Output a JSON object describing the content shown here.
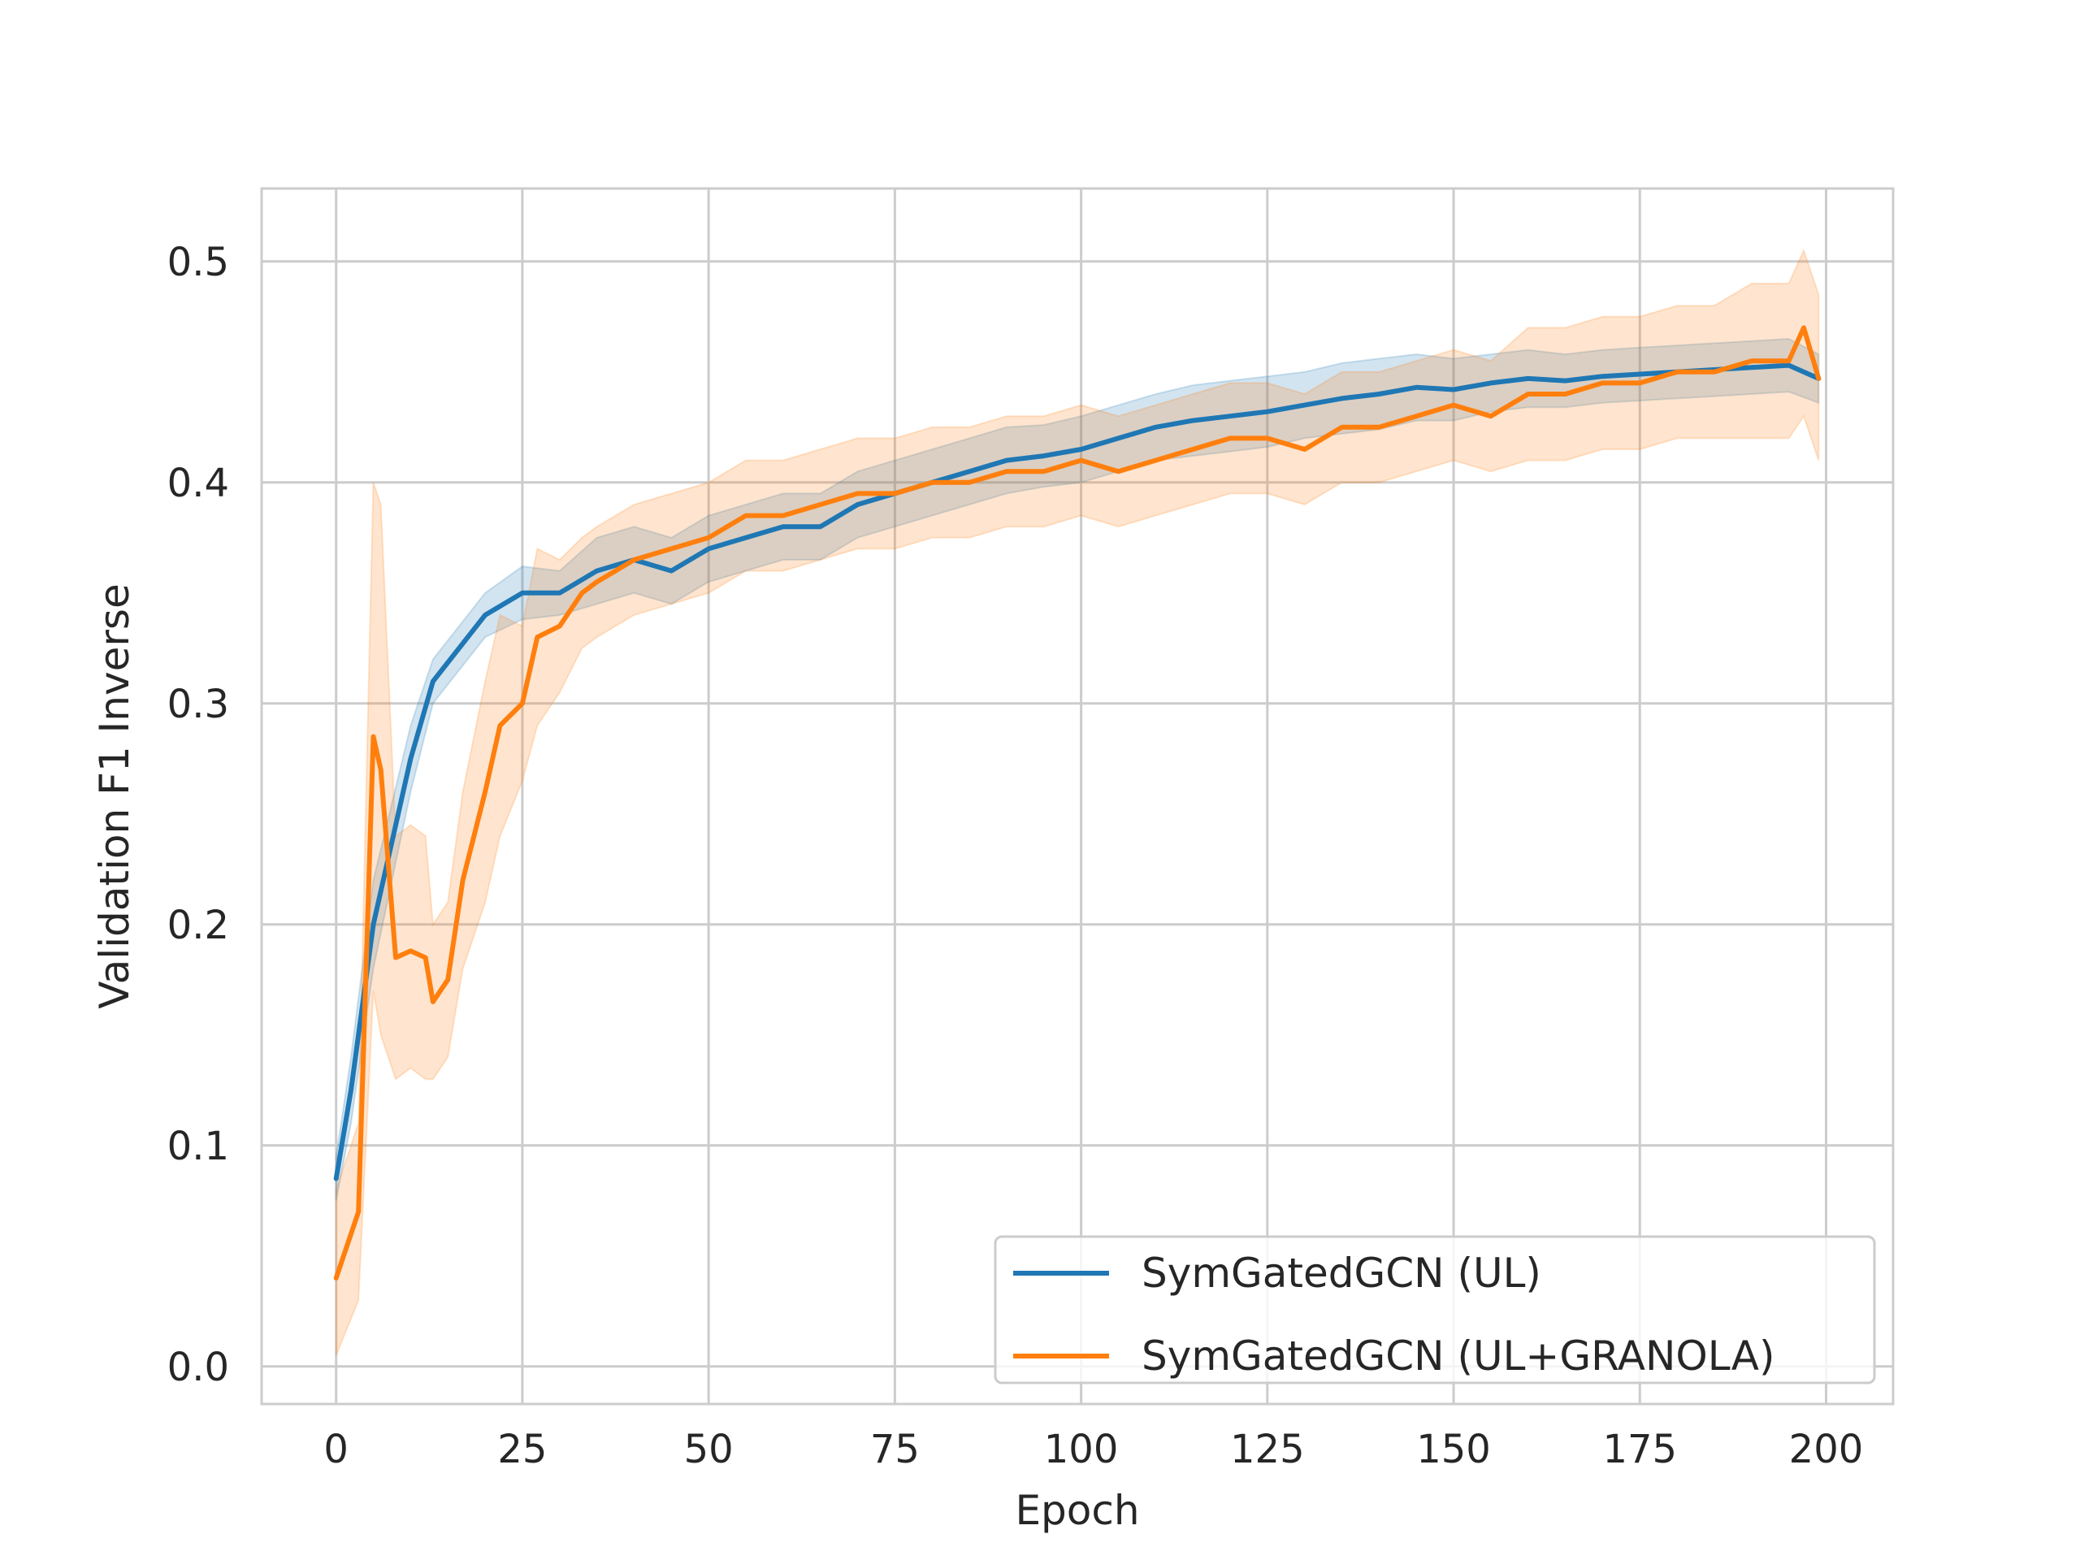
{
  "chart_data": {
    "type": "line",
    "title": "",
    "xlabel": "Epoch",
    "ylabel": "Validation F1 Inverse",
    "xlim": [
      -10,
      209
    ],
    "ylim": [
      -0.017,
      0.533
    ],
    "xticks": [
      0,
      25,
      50,
      75,
      100,
      125,
      150,
      175,
      200
    ],
    "yticks": [
      0.0,
      0.1,
      0.2,
      0.3,
      0.4,
      0.5
    ],
    "xtick_labels": [
      "0",
      "25",
      "50",
      "75",
      "100",
      "125",
      "150",
      "175",
      "200"
    ],
    "ytick_labels": [
      "0.0",
      "0.1",
      "0.2",
      "0.3",
      "0.4",
      "0.5"
    ],
    "grid": true,
    "legend_position": "lower-right",
    "series": [
      {
        "name": "SymGatedGCN (UL)",
        "color": "#1f77b4",
        "band_opacity": 0.2,
        "x": [
          0,
          2,
          5,
          10,
          13,
          20,
          25,
          30,
          35,
          40,
          45,
          50,
          55,
          60,
          65,
          70,
          75,
          80,
          85,
          90,
          95,
          100,
          105,
          110,
          115,
          120,
          125,
          130,
          135,
          140,
          145,
          150,
          155,
          160,
          165,
          170,
          175,
          180,
          185,
          190,
          195,
          199
        ],
        "values": [
          0.085,
          0.125,
          0.2,
          0.275,
          0.31,
          0.34,
          0.35,
          0.35,
          0.36,
          0.365,
          0.36,
          0.37,
          0.375,
          0.38,
          0.38,
          0.39,
          0.395,
          0.4,
          0.405,
          0.41,
          0.412,
          0.415,
          0.42,
          0.425,
          0.428,
          0.43,
          0.432,
          0.435,
          0.438,
          0.44,
          0.443,
          0.442,
          0.445,
          0.447,
          0.446,
          0.448,
          0.449,
          0.45,
          0.451,
          0.452,
          0.453,
          0.447
        ],
        "lower": [
          0.075,
          0.11,
          0.18,
          0.26,
          0.3,
          0.33,
          0.338,
          0.34,
          0.345,
          0.35,
          0.345,
          0.355,
          0.36,
          0.365,
          0.365,
          0.375,
          0.38,
          0.385,
          0.39,
          0.395,
          0.398,
          0.4,
          0.405,
          0.41,
          0.412,
          0.414,
          0.416,
          0.42,
          0.422,
          0.424,
          0.428,
          0.428,
          0.432,
          0.434,
          0.434,
          0.436,
          0.437,
          0.438,
          0.439,
          0.44,
          0.441,
          0.436
        ],
        "upper": [
          0.095,
          0.14,
          0.22,
          0.29,
          0.32,
          0.35,
          0.362,
          0.36,
          0.375,
          0.38,
          0.375,
          0.385,
          0.39,
          0.395,
          0.395,
          0.405,
          0.41,
          0.415,
          0.42,
          0.425,
          0.426,
          0.43,
          0.435,
          0.44,
          0.444,
          0.446,
          0.448,
          0.45,
          0.454,
          0.456,
          0.458,
          0.456,
          0.458,
          0.46,
          0.458,
          0.46,
          0.461,
          0.462,
          0.463,
          0.464,
          0.465,
          0.458
        ]
      },
      {
        "name": "SymGatedGCN (UL+GRANOLA)",
        "color": "#ff7f0e",
        "band_opacity": 0.2,
        "x": [
          0,
          3,
          5,
          6,
          8,
          10,
          12,
          13,
          15,
          17,
          20,
          22,
          25,
          27,
          30,
          33,
          35,
          40,
          45,
          50,
          55,
          60,
          65,
          70,
          75,
          80,
          85,
          90,
          95,
          100,
          105,
          110,
          115,
          120,
          125,
          130,
          135,
          140,
          145,
          150,
          155,
          160,
          165,
          170,
          175,
          180,
          185,
          190,
          195,
          197,
          199
        ],
        "values": [
          0.04,
          0.07,
          0.285,
          0.27,
          0.185,
          0.188,
          0.185,
          0.165,
          0.175,
          0.22,
          0.26,
          0.29,
          0.3,
          0.33,
          0.335,
          0.35,
          0.355,
          0.365,
          0.37,
          0.375,
          0.385,
          0.385,
          0.39,
          0.395,
          0.395,
          0.4,
          0.4,
          0.405,
          0.405,
          0.41,
          0.405,
          0.41,
          0.415,
          0.42,
          0.42,
          0.415,
          0.425,
          0.425,
          0.43,
          0.435,
          0.43,
          0.44,
          0.44,
          0.445,
          0.445,
          0.45,
          0.45,
          0.455,
          0.455,
          0.47,
          0.447
        ],
        "lower": [
          0.005,
          0.03,
          0.17,
          0.15,
          0.13,
          0.135,
          0.13,
          0.13,
          0.14,
          0.18,
          0.21,
          0.24,
          0.265,
          0.29,
          0.305,
          0.325,
          0.33,
          0.34,
          0.345,
          0.35,
          0.36,
          0.36,
          0.365,
          0.37,
          0.37,
          0.375,
          0.375,
          0.38,
          0.38,
          0.385,
          0.38,
          0.385,
          0.39,
          0.395,
          0.395,
          0.39,
          0.4,
          0.4,
          0.405,
          0.41,
          0.405,
          0.41,
          0.41,
          0.415,
          0.415,
          0.42,
          0.42,
          0.42,
          0.42,
          0.43,
          0.41
        ],
        "upper": [
          0.08,
          0.11,
          0.4,
          0.39,
          0.24,
          0.245,
          0.24,
          0.2,
          0.21,
          0.26,
          0.31,
          0.34,
          0.335,
          0.37,
          0.365,
          0.375,
          0.38,
          0.39,
          0.395,
          0.4,
          0.41,
          0.41,
          0.415,
          0.42,
          0.42,
          0.425,
          0.425,
          0.43,
          0.43,
          0.435,
          0.43,
          0.435,
          0.44,
          0.445,
          0.445,
          0.44,
          0.45,
          0.45,
          0.455,
          0.46,
          0.455,
          0.47,
          0.47,
          0.475,
          0.475,
          0.48,
          0.48,
          0.49,
          0.49,
          0.505,
          0.485
        ]
      }
    ]
  }
}
